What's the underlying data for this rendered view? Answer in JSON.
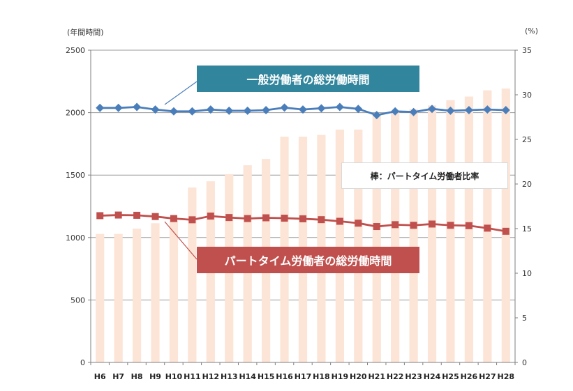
{
  "chart_data": {
    "type": "bar+line",
    "categories": [
      "H6",
      "H7",
      "H8",
      "H9",
      "H10",
      "H11",
      "H12",
      "H13",
      "H14",
      "H15",
      "H16",
      "H17",
      "H18",
      "H19",
      "H20",
      "H21",
      "H22",
      "H23",
      "H24",
      "H25",
      "H26",
      "H27",
      "H28"
    ],
    "left_axis": {
      "unit_label": "(年間時間)",
      "ylim": [
        0,
        2500
      ],
      "ticks": [
        0,
        500,
        1000,
        1500,
        2000,
        2500
      ]
    },
    "right_axis": {
      "unit_label": "(%)",
      "ylim": [
        0,
        35
      ],
      "ticks": [
        0,
        5,
        10,
        15,
        20,
        25,
        30,
        35
      ]
    },
    "bar_series": {
      "name": "棒：パートタイム労働者比率",
      "axis": "right",
      "color": "#fce4d6",
      "values": [
        14.4,
        14.4,
        15.0,
        15.6,
        15.9,
        19.6,
        20.3,
        21.1,
        22.1,
        22.8,
        25.3,
        25.3,
        25.5,
        26.1,
        26.1,
        27.8,
        28.2,
        28.4,
        28.8,
        29.4,
        29.8,
        30.5,
        30.7
      ]
    },
    "line_series": [
      {
        "name": "一般労働者の総労働時間",
        "axis": "left",
        "color": "#4a7ebb",
        "marker": "diamond",
        "values": [
          2038,
          2038,
          2045,
          2025,
          2010,
          2010,
          2025,
          2015,
          2015,
          2020,
          2040,
          2025,
          2035,
          2045,
          2030,
          1980,
          2010,
          2005,
          2030,
          2015,
          2020,
          2025,
          2020
        ]
      },
      {
        "name": "パートタイム労働者の総労働時間",
        "axis": "left",
        "color": "#c0504d",
        "marker": "square",
        "values": [
          1175,
          1180,
          1178,
          1168,
          1152,
          1142,
          1172,
          1160,
          1152,
          1158,
          1155,
          1150,
          1143,
          1130,
          1115,
          1088,
          1103,
          1098,
          1108,
          1098,
          1095,
          1075,
          1050
        ]
      }
    ],
    "grid": true
  },
  "labels": {
    "callout_general": "一般労働者の総労働時間",
    "callout_part": "パートタイム労働者の総労働時間",
    "bar_legend": "棒：パートタイム労働者比率",
    "left_unit": "(年間時間)",
    "right_unit": "(%)"
  },
  "colors": {
    "callout_general_bg": "#31859c",
    "callout_part_bg": "#c0504d"
  }
}
